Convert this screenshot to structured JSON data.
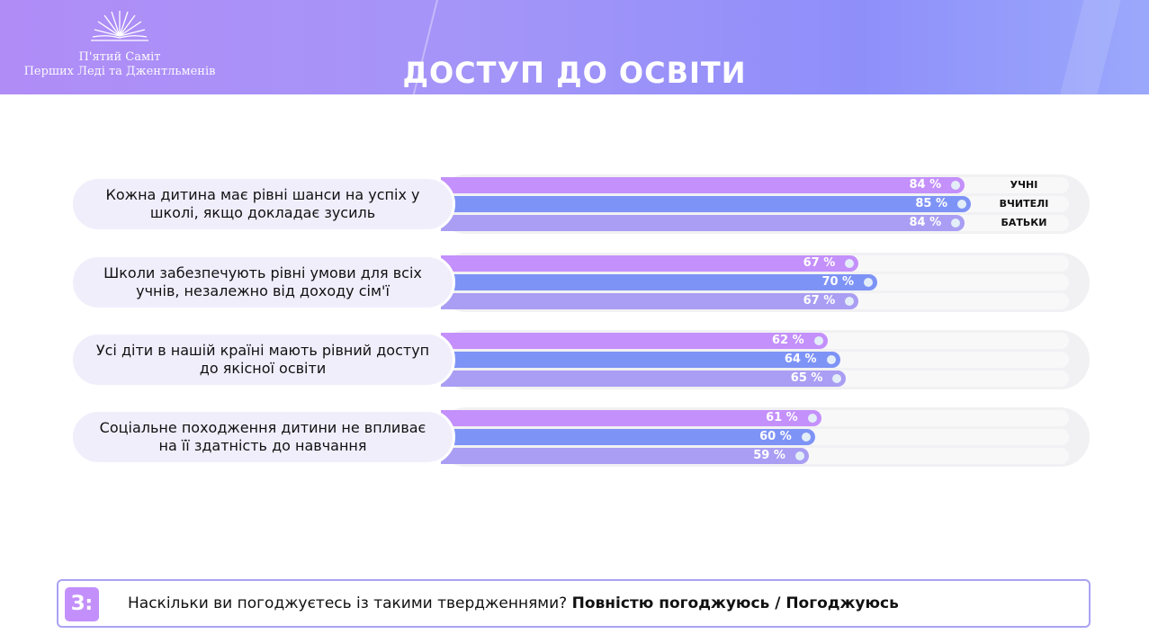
{
  "header": {
    "logo_line1": "П'ятий Саміт",
    "logo_line2": "Перших Леді та Джентльменів",
    "title": "ДОСТУП ДО ОСВІТИ"
  },
  "chart_data": {
    "type": "bar",
    "orientation": "horizontal",
    "title": "ДОСТУП ДО ОСВІТИ",
    "xlim": [
      0,
      100
    ],
    "unit": "%",
    "legend": [
      "УЧНІ",
      "ВЧИТЕЛІ",
      "БАТЬКИ"
    ],
    "categories": [
      "Кожна дитина має рівні шанси на успіх у школі, якщо докладає зусиль",
      "Школи забезпечують рівні умови для всіх учнів, незалежно від доходу сім'ї",
      "Усі діти в нашій країні мають рівний доступ до якісної освіти",
      "Соціальне походження дитини не впливає на її здатність до навчання"
    ],
    "series": [
      {
        "name": "УЧНІ",
        "color": "#c490fb",
        "values": [
          84,
          67,
          62,
          61
        ]
      },
      {
        "name": "ВЧИТЕЛІ",
        "color": "#7e93f6",
        "values": [
          85,
          70,
          64,
          60
        ]
      },
      {
        "name": "БАТЬКИ",
        "color": "#a99ef3",
        "values": [
          84,
          67,
          65,
          59
        ]
      }
    ]
  },
  "footer": {
    "badge": "З:",
    "question": "Наскільки ви погоджуєтесь із такими твердженнями?",
    "answer": "Повністю погоджуюсь / Погоджуюсь"
  }
}
